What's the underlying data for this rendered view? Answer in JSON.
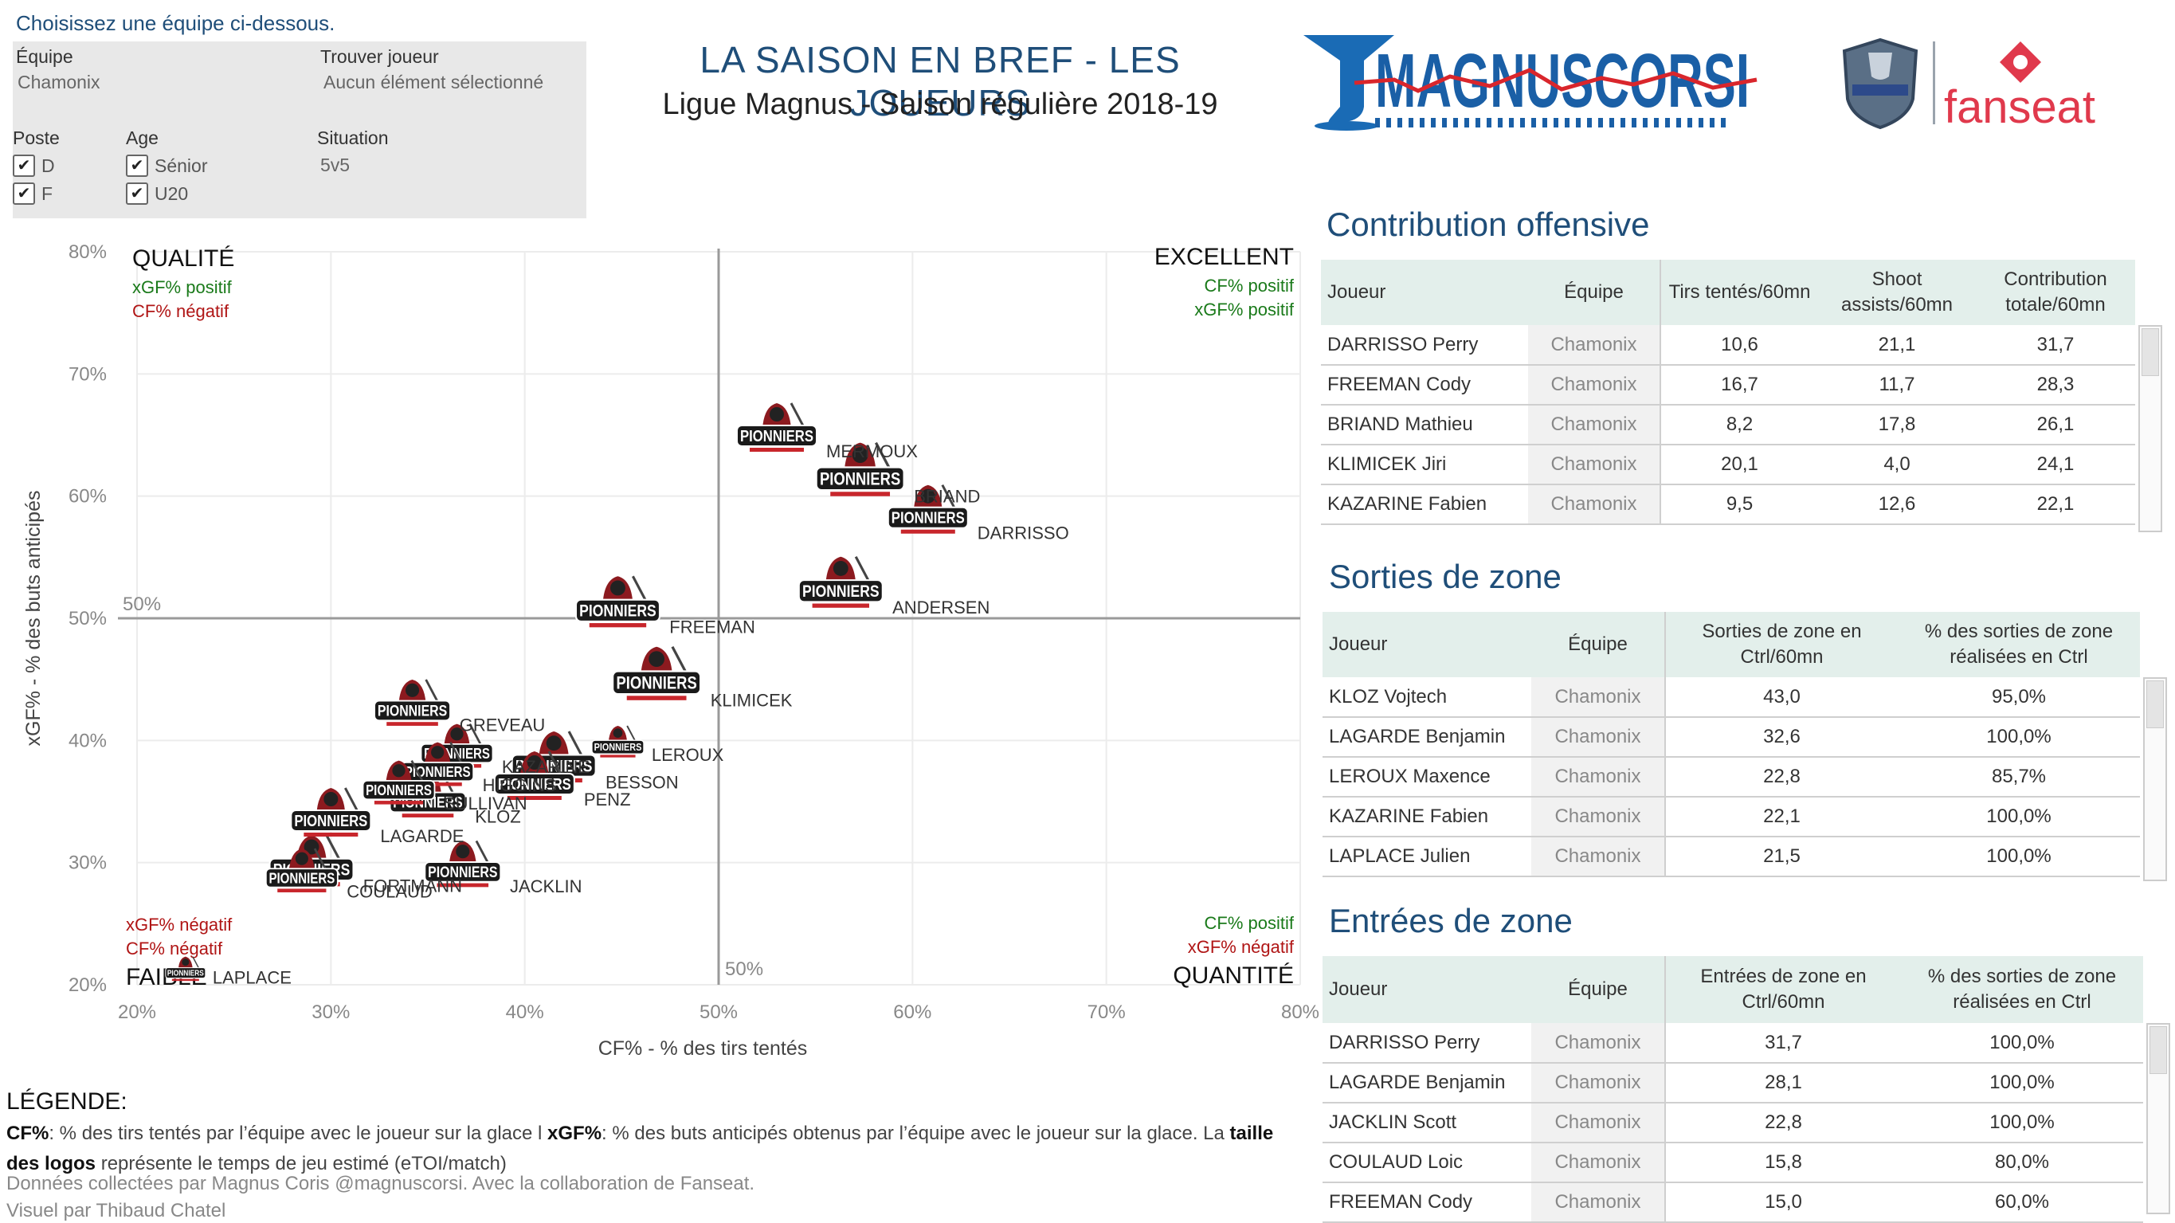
{
  "instruction": "Choisissez une équipe ci-dessous.",
  "filters": {
    "team_label": "Équipe",
    "team_value": "Chamonix",
    "player_label": "Trouver joueur",
    "player_value": "Aucun élément sélectionné",
    "position_label": "Poste",
    "positions": [
      "D",
      "F"
    ],
    "age_label": "Age",
    "ages": [
      "Sénior",
      "U20"
    ],
    "situation_label": "Situation",
    "situation_value": "5v5"
  },
  "header": {
    "title": "LA SAISON EN BREF - LES JOUEURS",
    "subtitle": "Ligue Magnus - Saison régulière 2018-19",
    "logo_main": "MAGNUSCORSI",
    "logo_partner": "fanseat"
  },
  "chart_data": {
    "type": "scatter",
    "xlabel": "CF% - % des tirs tentés",
    "ylabel": "xGF% - % des buts anticipés",
    "xlim": [
      20,
      80
    ],
    "ylim": [
      20,
      80
    ],
    "xticks": [
      "20%",
      "30%",
      "40%",
      "50%",
      "60%",
      "70%",
      "80%"
    ],
    "yticks": [
      "20%",
      "30%",
      "40%",
      "50%",
      "60%",
      "70%",
      "80%"
    ],
    "reference_lines": {
      "x": 50,
      "y": 50,
      "x_label": "50%",
      "y_label": "50%"
    },
    "quadrants": {
      "top_left": {
        "title": "QUALITÉ",
        "line1": "xGF% positif",
        "line2": "CF% négatif"
      },
      "top_right": {
        "title": "EXCELLENT",
        "line1": "CF% positif",
        "line2": "xGF% positif"
      },
      "bottom_left": {
        "title": "FAIBLE",
        "line1": "xGF% négatif",
        "line2": "CF% négatif"
      },
      "bottom_right": {
        "title": "QUANTITÉ",
        "line1": "CF% positif",
        "line2": "xGF% négatif"
      }
    },
    "marker_label": "PIONNIERS",
    "points": [
      {
        "name": "MERMOUX",
        "x": 53.0,
        "y": 65.0,
        "size": 1.0
      },
      {
        "name": "BRIAND",
        "x": 57.3,
        "y": 61.5,
        "size": 1.1
      },
      {
        "name": "DARRISSO",
        "x": 60.8,
        "y": 58.3,
        "size": 1.0
      },
      {
        "name": "ANDERSEN",
        "x": 56.3,
        "y": 52.3,
        "size": 1.05
      },
      {
        "name": "FREEMAN",
        "x": 44.8,
        "y": 50.7,
        "size": 1.05
      },
      {
        "name": "KLIMICEK",
        "x": 46.8,
        "y": 44.8,
        "size": 1.1
      },
      {
        "name": "GREVEAU",
        "x": 34.2,
        "y": 42.5,
        "size": 0.95
      },
      {
        "name": "LEROUX",
        "x": 44.8,
        "y": 39.5,
        "size": 0.65
      },
      {
        "name": "KAZARINE",
        "x": 36.5,
        "y": 39.0,
        "size": 0.9
      },
      {
        "name": "HIGGINS",
        "x": 35.5,
        "y": 37.5,
        "size": 0.9
      },
      {
        "name": "BESSON",
        "x": 41.5,
        "y": 38.0,
        "size": 1.05
      },
      {
        "name": "PENZ",
        "x": 40.5,
        "y": 36.5,
        "size": 1.0
      },
      {
        "name": "KLOZ",
        "x": 35.0,
        "y": 35.0,
        "size": 0.95
      },
      {
        "name": "SULLIVAN",
        "x": 33.5,
        "y": 36.0,
        "size": 0.9
      },
      {
        "name": "LAGARDE",
        "x": 30.0,
        "y": 33.5,
        "size": 1.0
      },
      {
        "name": "FORTMANN",
        "x": 29.0,
        "y": 29.5,
        "size": 1.05
      },
      {
        "name": "COULAUD",
        "x": 28.5,
        "y": 28.8,
        "size": 0.9
      },
      {
        "name": "JACKLIN",
        "x": 36.8,
        "y": 29.3,
        "size": 0.95
      },
      {
        "name": "LAPLACE",
        "x": 22.5,
        "y": 21.0,
        "size": 0.5
      }
    ]
  },
  "tables": {
    "offense": {
      "title": "Contribution offensive",
      "headers": [
        "Joueur",
        "Équipe",
        "Tirs tentés/60mn",
        "Shoot assists/60mn",
        "Contribution totale/60mn"
      ],
      "rows": [
        [
          "DARRISSO  Perry",
          "Chamonix",
          "10,6",
          "21,1",
          "31,7"
        ],
        [
          "FREEMAN  Cody",
          "Chamonix",
          "16,7",
          "11,7",
          "28,3"
        ],
        [
          "BRIAND  Mathieu",
          "Chamonix",
          "8,2",
          "17,8",
          "26,1"
        ],
        [
          "KLIMICEK  Jiri",
          "Chamonix",
          "20,1",
          "4,0",
          "24,1"
        ],
        [
          "KAZARINE  Fabien",
          "Chamonix",
          "9,5",
          "12,6",
          "22,1"
        ]
      ]
    },
    "exits": {
      "title": "Sorties de zone",
      "headers": [
        "Joueur",
        "Équipe",
        "Sorties de zone en Ctrl/60mn",
        "% des sorties de zone réalisées en Ctrl"
      ],
      "rows": [
        [
          "KLOZ Vojtech",
          "Chamonix",
          "43,0",
          "95,0%"
        ],
        [
          "LAGARDE  Benjamin",
          "Chamonix",
          "32,6",
          "100,0%"
        ],
        [
          "LEROUX  Maxence",
          "Chamonix",
          "22,8",
          "85,7%"
        ],
        [
          "KAZARINE  Fabien",
          "Chamonix",
          "22,1",
          "100,0%"
        ],
        [
          "LAPLACE  Julien",
          "Chamonix",
          "21,5",
          "100,0%"
        ]
      ]
    },
    "entries": {
      "title": "Entrées de zone",
      "headers": [
        "Joueur",
        "Équipe",
        "Entrées de zone en Ctrl/60mn",
        "% des sorties de zone réalisées en Ctrl"
      ],
      "rows": [
        [
          "DARRISSO  Perry",
          "Chamonix",
          "31,7",
          "100,0%"
        ],
        [
          "LAGARDE  Benjamin",
          "Chamonix",
          "28,1",
          "100,0%"
        ],
        [
          "JACKLIN  Scott",
          "Chamonix",
          "22,8",
          "100,0%"
        ],
        [
          "COULAUD  Loic",
          "Chamonix",
          "15,8",
          "80,0%"
        ],
        [
          "FREEMAN  Cody",
          "Chamonix",
          "15,0",
          "60,0%"
        ]
      ]
    }
  },
  "legend": {
    "heading": "LÉGENDE:",
    "cf_term": "CF%",
    "cf_text": ": % des tirs tentés par l’équipe avec le joueur sur la glace l  ",
    "xgf_term": "xGF%",
    "xgf_text": ": % des buts anticipés obtenus par l’équipe avec le joueur sur la glace. La ",
    "size_term": "taille des logos",
    "size_text": " représente le temps de jeu estimé (eTOI/match)"
  },
  "footer": {
    "credits": "Données collectées par Magnus Coris @magnuscorsi. Avec la collaboration de Fanseat.",
    "author": "Visuel par Thibaud Chatel"
  }
}
